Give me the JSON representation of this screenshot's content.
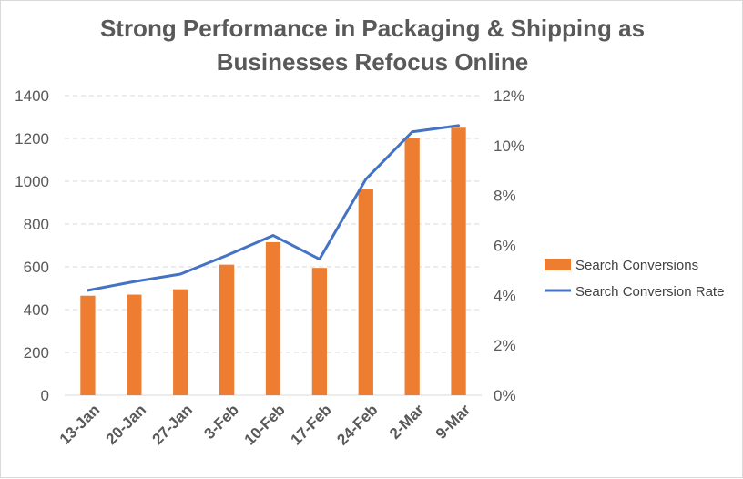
{
  "chart_data": {
    "type": "bar",
    "title_lines": [
      "Strong Performance in Packaging & Shipping as",
      "Businesses Refocus Online"
    ],
    "categories": [
      "13-Jan",
      "20-Jan",
      "27-Jan",
      "3-Feb",
      "10-Feb",
      "17-Feb",
      "24-Feb",
      "2-Mar",
      "9-Mar"
    ],
    "series": [
      {
        "name": "Search Conversions",
        "type": "bar",
        "axis": "left",
        "color": "#ED7D31",
        "values": [
          465,
          470,
          495,
          610,
          715,
          595,
          965,
          1200,
          1250
        ]
      },
      {
        "name": "Search Conversion Rate",
        "type": "line",
        "axis": "right",
        "color": "#4472C4",
        "values": [
          0.042,
          0.0455,
          0.0485,
          0.056,
          0.064,
          0.0545,
          0.0865,
          0.1055,
          0.108
        ]
      }
    ],
    "y_left": {
      "min": 0,
      "max": 1400,
      "ticks": [
        "0",
        "200",
        "400",
        "600",
        "800",
        "1000",
        "1200",
        "1400"
      ]
    },
    "y_right": {
      "min": 0,
      "max": 0.12,
      "ticks": [
        "0%",
        "2%",
        "4%",
        "6%",
        "8%",
        "10%",
        "12%"
      ]
    },
    "grid": true,
    "legend_position": "right"
  }
}
